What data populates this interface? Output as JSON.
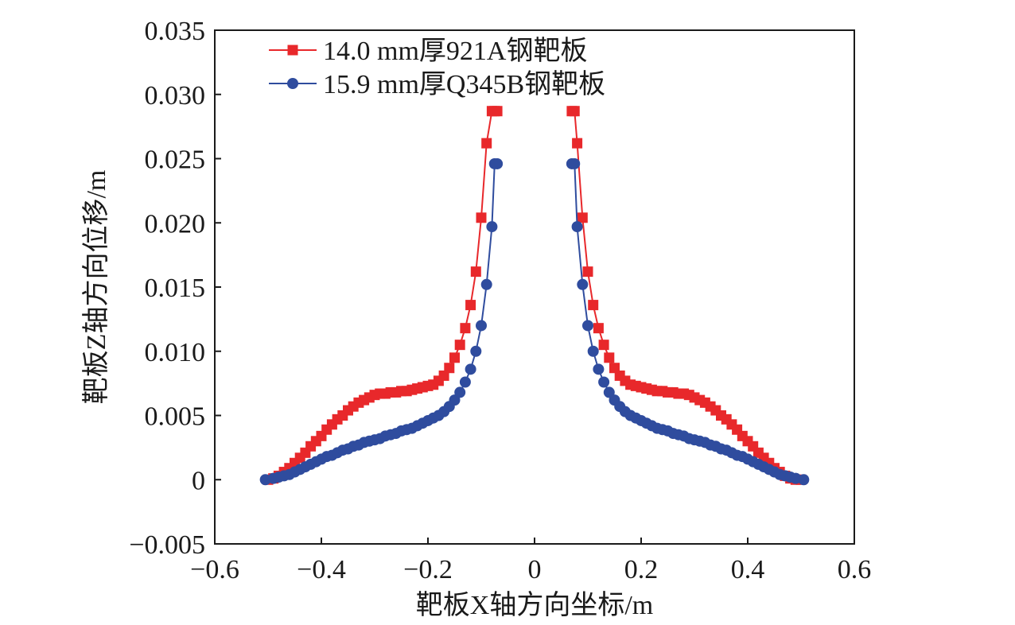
{
  "chart_data": {
    "type": "line",
    "xlabel": "靶板X轴方向坐标/m",
    "ylabel": "靶板Z轴方向位移/m",
    "xlim": [
      -0.6,
      0.6
    ],
    "ylim": [
      -0.005,
      0.035
    ],
    "xticks": [
      -0.6,
      -0.4,
      -0.2,
      0,
      0.2,
      0.4,
      0.6
    ],
    "xtick_labels": [
      "−0.6",
      "−0.4",
      "−0.2",
      "0",
      "0.2",
      "0.4",
      "0.6"
    ],
    "yticks": [
      -0.005,
      0,
      0.005,
      0.01,
      0.015,
      0.02,
      0.025,
      0.03,
      0.035
    ],
    "ytick_labels": [
      "−0.005",
      "0",
      "0.005",
      "0.010",
      "0.015",
      "0.020",
      "0.025",
      "0.030",
      "0.035"
    ],
    "legend_position": "top-left",
    "grid": false,
    "series": [
      {
        "name": "14.0 mm厚921A钢靶板",
        "color": "#e8282b",
        "marker": "square",
        "x": [
          -0.5,
          -0.49,
          -0.48,
          -0.47,
          -0.46,
          -0.45,
          -0.44,
          -0.43,
          -0.42,
          -0.41,
          -0.4,
          -0.39,
          -0.38,
          -0.37,
          -0.36,
          -0.35,
          -0.34,
          -0.33,
          -0.32,
          -0.31,
          -0.3,
          -0.29,
          -0.28,
          -0.27,
          -0.26,
          -0.25,
          -0.24,
          -0.23,
          -0.22,
          -0.21,
          -0.2,
          -0.19,
          -0.18,
          -0.17,
          -0.16,
          -0.15,
          -0.14,
          -0.13,
          -0.12,
          -0.11,
          -0.1,
          -0.09,
          -0.08,
          -0.075,
          -0.07,
          0.07,
          0.075,
          0.08,
          0.09,
          0.1,
          0.11,
          0.12,
          0.13,
          0.14,
          0.15,
          0.16,
          0.17,
          0.18,
          0.19,
          0.2,
          0.21,
          0.22,
          0.23,
          0.24,
          0.25,
          0.26,
          0.27,
          0.28,
          0.29,
          0.3,
          0.31,
          0.32,
          0.33,
          0.34,
          0.35,
          0.36,
          0.37,
          0.38,
          0.39,
          0.4,
          0.41,
          0.42,
          0.43,
          0.44,
          0.45,
          0.46,
          0.47,
          0.48,
          0.49,
          0.5
        ],
        "y": [
          0.0,
          0.0001,
          0.0003,
          0.0006,
          0.0009,
          0.0013,
          0.0017,
          0.0021,
          0.0026,
          0.003,
          0.0034,
          0.0039,
          0.0043,
          0.0047,
          0.005,
          0.0054,
          0.0057,
          0.006,
          0.0062,
          0.0064,
          0.0066,
          0.0067,
          0.0067,
          0.0068,
          0.0068,
          0.0069,
          0.0069,
          0.007,
          0.0071,
          0.0072,
          0.0073,
          0.0074,
          0.0077,
          0.0081,
          0.0087,
          0.0095,
          0.0105,
          0.0118,
          0.0136,
          0.0162,
          0.0204,
          0.0262,
          0.0287,
          0.0287,
          0.0287,
          0.0287,
          0.0287,
          0.0262,
          0.0204,
          0.0162,
          0.0136,
          0.0118,
          0.0105,
          0.0095,
          0.0087,
          0.0081,
          0.0077,
          0.0074,
          0.0073,
          0.0072,
          0.0071,
          0.007,
          0.0069,
          0.0069,
          0.0068,
          0.0068,
          0.0067,
          0.0067,
          0.0066,
          0.0064,
          0.0062,
          0.006,
          0.0057,
          0.0054,
          0.005,
          0.0047,
          0.0043,
          0.0039,
          0.0034,
          0.003,
          0.0026,
          0.0021,
          0.0017,
          0.0013,
          0.0009,
          0.0006,
          0.0003,
          0.0001,
          0.0,
          0.0
        ]
      },
      {
        "name": "15.9 mm厚Q345B钢靶板",
        "color": "#2f4c9e",
        "marker": "circle",
        "x": [
          -0.505,
          -0.49,
          -0.48,
          -0.47,
          -0.46,
          -0.45,
          -0.44,
          -0.43,
          -0.42,
          -0.41,
          -0.4,
          -0.39,
          -0.38,
          -0.37,
          -0.36,
          -0.35,
          -0.34,
          -0.33,
          -0.32,
          -0.31,
          -0.3,
          -0.29,
          -0.28,
          -0.27,
          -0.26,
          -0.25,
          -0.24,
          -0.23,
          -0.22,
          -0.21,
          -0.2,
          -0.19,
          -0.18,
          -0.17,
          -0.16,
          -0.15,
          -0.14,
          -0.13,
          -0.12,
          -0.11,
          -0.1,
          -0.09,
          -0.08,
          -0.075,
          -0.07,
          0.07,
          0.075,
          0.08,
          0.09,
          0.1,
          0.11,
          0.12,
          0.13,
          0.14,
          0.15,
          0.16,
          0.17,
          0.18,
          0.19,
          0.2,
          0.21,
          0.22,
          0.23,
          0.24,
          0.25,
          0.26,
          0.27,
          0.28,
          0.29,
          0.3,
          0.31,
          0.32,
          0.33,
          0.34,
          0.35,
          0.36,
          0.37,
          0.38,
          0.39,
          0.4,
          0.41,
          0.42,
          0.43,
          0.44,
          0.45,
          0.46,
          0.47,
          0.48,
          0.49,
          0.505
        ],
        "y": [
          0.0,
          0.0001,
          0.0002,
          0.0003,
          0.0004,
          0.0006,
          0.0008,
          0.001,
          0.0012,
          0.0014,
          0.0016,
          0.0018,
          0.0019,
          0.0021,
          0.0023,
          0.0024,
          0.0026,
          0.0027,
          0.0029,
          0.003,
          0.0031,
          0.0032,
          0.0034,
          0.0035,
          0.0036,
          0.0038,
          0.0039,
          0.004,
          0.0042,
          0.0044,
          0.0046,
          0.0048,
          0.005,
          0.0053,
          0.0057,
          0.0062,
          0.0068,
          0.0076,
          0.0086,
          0.01,
          0.012,
          0.0152,
          0.0197,
          0.0246,
          0.0246,
          0.0246,
          0.0246,
          0.0197,
          0.0152,
          0.012,
          0.01,
          0.0086,
          0.0076,
          0.0068,
          0.0062,
          0.0057,
          0.0053,
          0.005,
          0.0048,
          0.0046,
          0.0044,
          0.0042,
          0.004,
          0.0039,
          0.0038,
          0.0036,
          0.0035,
          0.0034,
          0.0032,
          0.0031,
          0.003,
          0.0029,
          0.0027,
          0.0026,
          0.0024,
          0.0023,
          0.0021,
          0.0019,
          0.0018,
          0.0016,
          0.0014,
          0.0012,
          0.001,
          0.0008,
          0.0006,
          0.0004,
          0.0003,
          0.0002,
          0.0001,
          0.0
        ]
      }
    ]
  }
}
